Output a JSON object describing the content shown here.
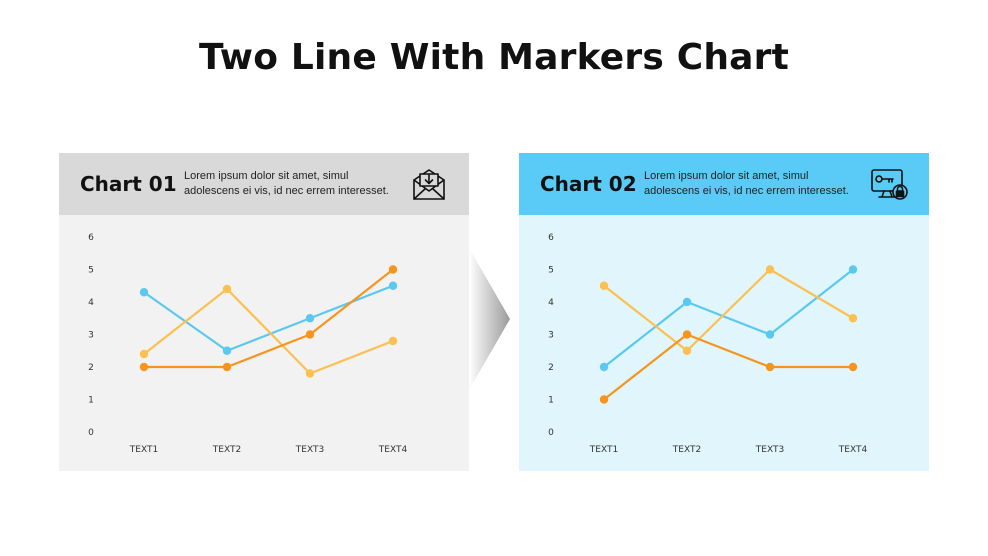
{
  "page": {
    "title": "Two Line With Markers Chart"
  },
  "colors": {
    "blue": "#5bc8ef",
    "orange": "#f7941d",
    "light_orange": "#fbc04f",
    "left_panel_bg": "#f2f2f2",
    "left_header_bg": "#d9d9d9",
    "right_panel_bg": "#e0f5fc",
    "right_header_bg": "#5acbf7"
  },
  "panels": [
    {
      "title": "Chart 01",
      "description": "Lorem ipsum dolor sit amet, simul adolescens ei vis, id nec errem interesset.",
      "icon": "envelope-download-icon"
    },
    {
      "title": "Chart 02",
      "description": "Lorem ipsum dolor sit amet, simul adolescens ei vis, id nec errem interesset.",
      "icon": "computer-key-lock-icon"
    }
  ],
  "chart_data": [
    {
      "type": "line",
      "categories": [
        "TEXT1",
        "TEXT2",
        "TEXT3",
        "TEXT4"
      ],
      "ylim": [
        0,
        6
      ],
      "yticks": [
        0,
        1,
        2,
        3,
        4,
        5,
        6
      ],
      "grid": false,
      "markers": true,
      "series": [
        {
          "color": "#5bc8ef",
          "values": [
            4.3,
            2.5,
            3.5,
            4.5
          ]
        },
        {
          "color": "#fbc04f",
          "values": [
            2.4,
            4.4,
            1.8,
            2.8
          ]
        },
        {
          "color": "#f7941d",
          "values": [
            2.0,
            2.0,
            3.0,
            5.0
          ]
        }
      ]
    },
    {
      "type": "line",
      "categories": [
        "TEXT1",
        "TEXT2",
        "TEXT3",
        "TEXT4"
      ],
      "ylim": [
        0,
        6
      ],
      "yticks": [
        0,
        1,
        2,
        3,
        4,
        5,
        6
      ],
      "grid": false,
      "markers": true,
      "series": [
        {
          "color": "#5bc8ef",
          "values": [
            2.0,
            4.0,
            3.0,
            5.0
          ]
        },
        {
          "color": "#fbc04f",
          "values": [
            4.5,
            2.5,
            5.0,
            3.5
          ]
        },
        {
          "color": "#f7941d",
          "values": [
            1.0,
            3.0,
            2.0,
            2.0
          ]
        }
      ]
    }
  ]
}
